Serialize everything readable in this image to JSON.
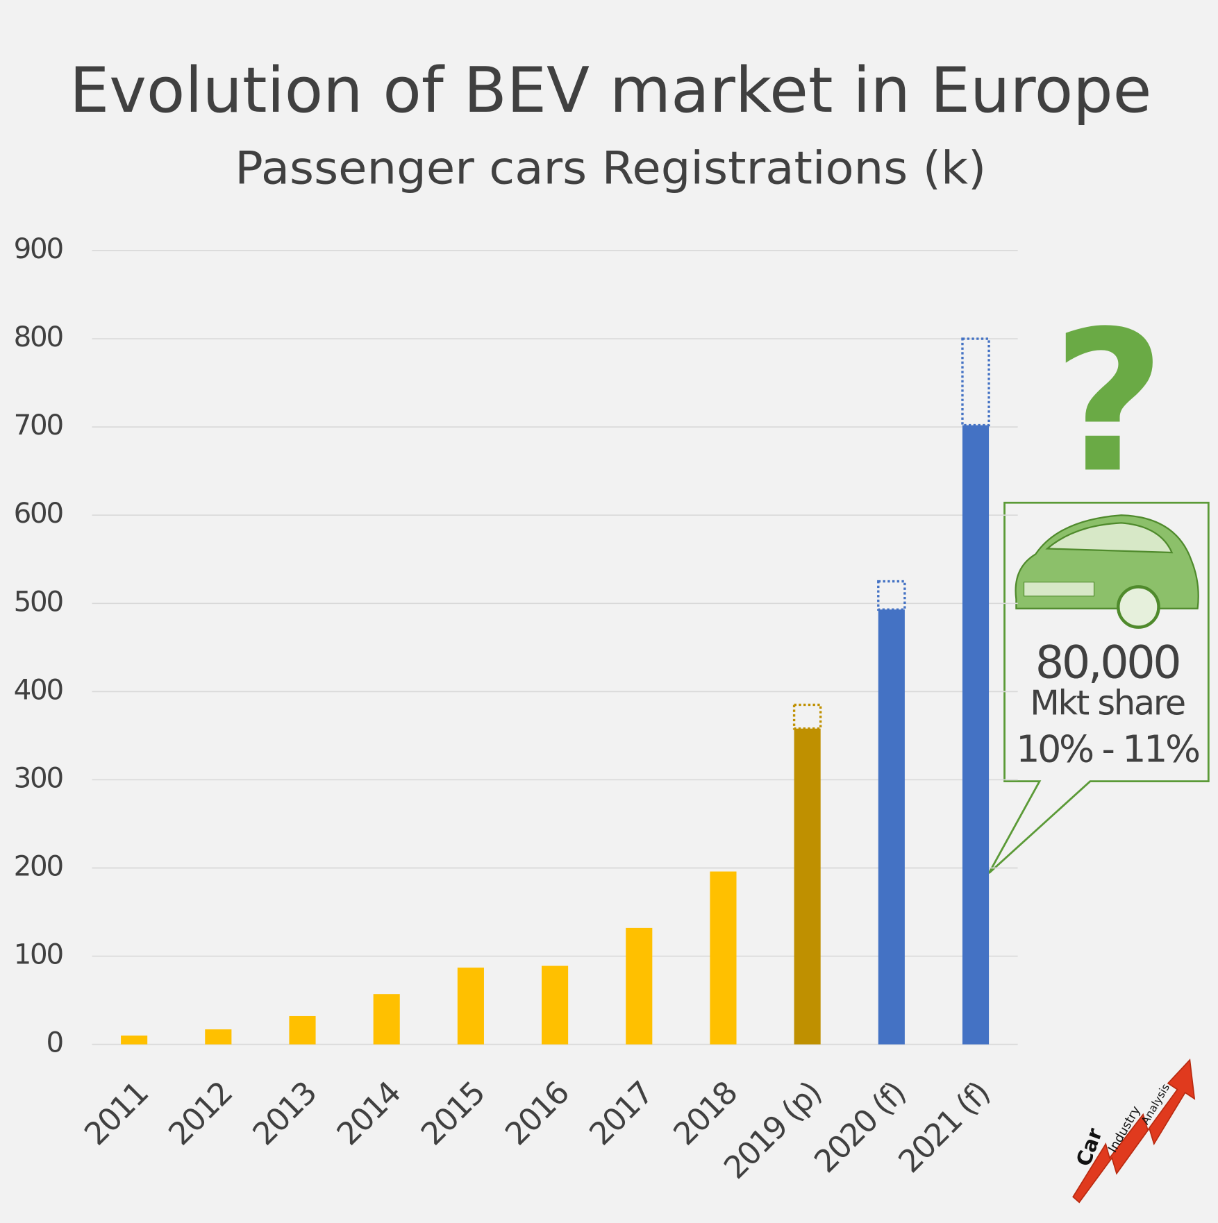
{
  "chart_data": {
    "type": "bar",
    "title": "Evolution of BEV market in Europe",
    "subtitle": "Passenger cars Registrations (k)",
    "categories": [
      "2011",
      "2012",
      "2013",
      "2014",
      "2015",
      "2016",
      "2017",
      "2018",
      "2019 (p)",
      "2020 (f)",
      "2021 (f)"
    ],
    "values": [
      10,
      17,
      32,
      57,
      87,
      89,
      132,
      196,
      358,
      493,
      702
    ],
    "range_high": [
      null,
      null,
      null,
      null,
      null,
      null,
      null,
      null,
      385,
      525,
      800
    ],
    "colors": [
      "#ffc000",
      "#ffc000",
      "#ffc000",
      "#ffc000",
      "#ffc000",
      "#ffc000",
      "#ffc000",
      "#ffc000",
      "#bf9000",
      "#4472c4",
      "#4472c4"
    ],
    "ylim": [
      0,
      900
    ],
    "yticks": [
      0,
      100,
      200,
      300,
      400,
      500,
      600,
      700,
      800,
      900
    ],
    "grid": true,
    "annotation": {
      "headline": "80,000",
      "lines": [
        "Mkt share",
        "10% - 11%"
      ]
    }
  },
  "logo": [
    "Car",
    "Industry",
    "Analysis"
  ]
}
